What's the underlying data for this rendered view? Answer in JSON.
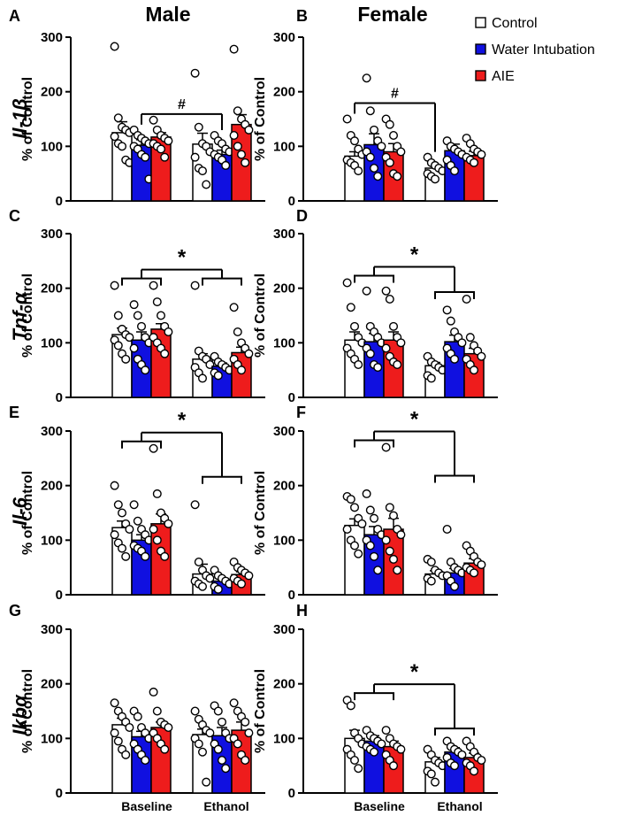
{
  "figure": {
    "col_titles": [
      "Male",
      "Female"
    ],
    "gene_labels": [
      "Il-1β",
      "Tnf-α",
      "Il-6",
      "Ikbα"
    ],
    "x_groups": [
      "Baseline",
      "Ethanol"
    ],
    "y_axis_label": "% of Control",
    "y_ticks": [
      "0",
      "100",
      "200",
      "300"
    ],
    "legend": [
      {
        "label": "Control",
        "color": "#ffffff"
      },
      {
        "label": "Water Intubation",
        "color": "#1010e0"
      },
      {
        "label": "AIE",
        "color": "#ee1c1c"
      }
    ]
  },
  "chart_data": [
    {
      "panel": "A",
      "type": "bar",
      "sex": "Male",
      "gene": "Il-1β",
      "categories": [
        "Baseline",
        "Ethanol"
      ],
      "ylabel": "% of Control",
      "ylim": [
        0,
        300
      ],
      "series": [
        {
          "name": "Control",
          "values": [
            125,
            104
          ],
          "sem": [
            20,
            20
          ],
          "points": [
            [
              283,
              152,
              135,
              130,
              125,
              118,
              105,
              100,
              75,
              70
            ],
            [
              234,
              135,
              105,
              100,
              90,
              80,
              60,
              55,
              30
            ]
          ]
        },
        {
          "name": "Water Intubation",
          "values": [
            102,
            85
          ],
          "sem": [
            10,
            8
          ],
          "points": [
            [
              130,
              120,
              115,
              110,
              105,
              100,
              95,
              85,
              80,
              40
            ],
            [
              120,
              110,
              105,
              95,
              90,
              85,
              80,
              75,
              65
            ]
          ]
        },
        {
          "name": "AIE",
          "values": [
            117,
            140
          ],
          "sem": [
            8,
            18
          ],
          "points": [
            [
              148,
              130,
              120,
              115,
              110,
              105,
              100,
              95,
              80
            ],
            [
              278,
              165,
              150,
              140,
              130,
              120,
              100,
              85,
              70
            ]
          ]
        }
      ],
      "annotations": [
        {
          "text": "#",
          "spans": [
            [
              "Baseline",
              "Water Intubation"
            ],
            [
              "Ethanol",
              "Water Intubation"
            ]
          ]
        }
      ]
    },
    {
      "panel": "B",
      "type": "bar",
      "sex": "Female",
      "gene": "Il-1β",
      "categories": [
        "Baseline",
        "Ethanol"
      ],
      "ylabel": "% of Control",
      "ylim": [
        0,
        300
      ],
      "series": [
        {
          "name": "Control",
          "values": [
            82,
            60
          ],
          "sem": [
            8,
            6
          ],
          "points": [
            [
              150,
              120,
              110,
              95,
              85,
              75,
              70,
              65,
              55
            ],
            [
              80,
              70,
              65,
              60,
              55,
              50,
              45,
              40
            ]
          ]
        },
        {
          "name": "Water Intubation",
          "values": [
            103,
            92
          ],
          "sem": [
            20,
            12
          ],
          "points": [
            [
              225,
              165,
              130,
              110,
              100,
              90,
              80,
              60,
              45
            ],
            [
              110,
              100,
              95,
              90,
              85,
              75,
              65,
              55
            ]
          ]
        },
        {
          "name": "AIE",
          "values": [
            90,
            83
          ],
          "sem": [
            15,
            8
          ],
          "points": [
            [
              150,
              140,
              120,
              100,
              90,
              80,
              70,
              50,
              45
            ],
            [
              115,
              105,
              95,
              90,
              85,
              80,
              75,
              70
            ]
          ]
        }
      ],
      "annotations": [
        {
          "text": "#",
          "spans": [
            [
              "Baseline",
              "Control"
            ],
            [
              "Ethanol",
              "Control"
            ]
          ]
        }
      ]
    },
    {
      "panel": "C",
      "type": "bar",
      "sex": "Male",
      "gene": "Tnf-α",
      "categories": [
        "Baseline",
        "Ethanol"
      ],
      "ylabel": "% of Control",
      "ylim": [
        0,
        300
      ],
      "series": [
        {
          "name": "Control",
          "values": [
            115,
            70
          ],
          "sem": [
            12,
            10
          ],
          "points": [
            [
              205,
              150,
              125,
              115,
              110,
              105,
              95,
              80,
              70
            ],
            [
              205,
              85,
              75,
              70,
              60,
              55,
              45,
              35
            ]
          ]
        },
        {
          "name": "Water Intubation",
          "values": [
            105,
            57
          ],
          "sem": [
            15,
            6
          ],
          "points": [
            [
              170,
              150,
              130,
              110,
              100,
              90,
              70,
              60,
              50
            ],
            [
              75,
              65,
              60,
              55,
              50,
              45,
              40
            ]
          ]
        },
        {
          "name": "AIE",
          "values": [
            125,
            82
          ],
          "sem": [
            10,
            10
          ],
          "points": [
            [
              205,
              175,
              150,
              130,
              120,
              110,
              100,
              90,
              80
            ],
            [
              165,
              120,
              100,
              90,
              80,
              70,
              60,
              50
            ]
          ]
        }
      ],
      "annotations": [
        {
          "text": "*",
          "spans": [
            [
              "Baseline",
              "all"
            ],
            [
              "Ethanol",
              "all"
            ]
          ]
        }
      ]
    },
    {
      "panel": "D",
      "type": "bar",
      "sex": "Female",
      "gene": "Tnf-α",
      "categories": [
        "Baseline",
        "Ethanol"
      ],
      "ylabel": "% of Control",
      "ylim": [
        0,
        300
      ],
      "series": [
        {
          "name": "Control",
          "values": [
            105,
            58
          ],
          "sem": [
            15,
            6
          ],
          "points": [
            [
              210,
              165,
              130,
              110,
              100,
              90,
              80,
              70,
              60
            ],
            [
              75,
              65,
              60,
              55,
              50,
              40,
              35
            ]
          ]
        },
        {
          "name": "Water Intubation",
          "values": [
            102,
            102
          ],
          "sem": [
            15,
            12
          ],
          "points": [
            [
              195,
              130,
              120,
              110,
              100,
              90,
              80,
              60,
              55
            ],
            [
              160,
              140,
              120,
              110,
              100,
              90,
              80,
              70
            ]
          ]
        },
        {
          "name": "AIE",
          "values": [
            105,
            80
          ],
          "sem": [
            15,
            10
          ],
          "points": [
            [
              195,
              180,
              130,
              110,
              100,
              90,
              75,
              65,
              60
            ],
            [
              180,
              110,
              95,
              85,
              75,
              70,
              60,
              50
            ]
          ]
        }
      ],
      "annotations": [
        {
          "text": "*",
          "spans": [
            [
              "Baseline",
              "all"
            ],
            [
              "Ethanol",
              "all"
            ]
          ]
        }
      ]
    },
    {
      "panel": "E",
      "type": "bar",
      "sex": "Male",
      "gene": "Il-6",
      "categories": [
        "Baseline",
        "Ethanol"
      ],
      "ylabel": "% of Control",
      "ylim": [
        0,
        300
      ],
      "series": [
        {
          "name": "Control",
          "values": [
            123,
            38
          ],
          "sem": [
            12,
            18
          ],
          "points": [
            [
              200,
              165,
              150,
              130,
              120,
              110,
              95,
              85,
              70
            ],
            [
              165,
              60,
              45,
              35,
              30,
              25,
              20,
              15
            ]
          ]
        },
        {
          "name": "Water Intubation",
          "values": [
            100,
            25
          ],
          "sem": [
            10,
            4
          ],
          "points": [
            [
              165,
              135,
              120,
              110,
              100,
              90,
              85,
              80,
              70
            ],
            [
              45,
              35,
              30,
              25,
              20,
              15,
              10
            ]
          ]
        },
        {
          "name": "AIE",
          "values": [
            130,
            37
          ],
          "sem": [
            18,
            5
          ],
          "points": [
            [
              268,
              185,
              150,
              140,
              130,
              120,
              100,
              80,
              70
            ],
            [
              60,
              50,
              45,
              40,
              35,
              30,
              25,
              20
            ]
          ]
        }
      ],
      "annotations": [
        {
          "text": "*",
          "spans": [
            [
              "Baseline",
              "all"
            ],
            [
              "Ethanol",
              "all"
            ]
          ]
        }
      ]
    },
    {
      "panel": "F",
      "type": "bar",
      "sex": "Female",
      "gene": "Il-6",
      "categories": [
        "Baseline",
        "Ethanol"
      ],
      "ylabel": "% of Control",
      "ylim": [
        0,
        300
      ],
      "series": [
        {
          "name": "Control",
          "values": [
            127,
            38
          ],
          "sem": [
            12,
            6
          ],
          "points": [
            [
              180,
              175,
              160,
              140,
              130,
              120,
              100,
              90,
              75
            ],
            [
              65,
              60,
              45,
              40,
              35,
              30,
              25
            ]
          ]
        },
        {
          "name": "Water Intubation",
          "values": [
            110,
            40
          ],
          "sem": [
            15,
            8
          ],
          "points": [
            [
              185,
              155,
              140,
              120,
              110,
              100,
              90,
              70,
              45
            ],
            [
              120,
              60,
              50,
              45,
              40,
              35,
              25,
              15
            ]
          ]
        },
        {
          "name": "AIE",
          "values": [
            120,
            58
          ],
          "sem": [
            20,
            8
          ],
          "points": [
            [
              270,
              160,
              145,
              120,
              110,
              100,
              80,
              65,
              45
            ],
            [
              90,
              80,
              70,
              60,
              55,
              50,
              45,
              40
            ]
          ]
        }
      ],
      "annotations": [
        {
          "text": "*",
          "spans": [
            [
              "Baseline",
              "all"
            ],
            [
              "Ethanol",
              "all"
            ]
          ]
        }
      ]
    },
    {
      "panel": "G",
      "type": "bar",
      "sex": "Male",
      "gene": "Ikbα",
      "categories": [
        "Baseline",
        "Ethanol"
      ],
      "ylabel": "% of Control",
      "ylim": [
        0,
        300
      ],
      "series": [
        {
          "name": "Control",
          "values": [
            125,
            107
          ],
          "sem": [
            12,
            10
          ],
          "points": [
            [
              165,
              150,
              140,
              130,
              120,
              110,
              95,
              80,
              70
            ],
            [
              150,
              135,
              125,
              115,
              110,
              100,
              90,
              75,
              20
            ]
          ]
        },
        {
          "name": "Water Intubation",
          "values": [
            103,
            105
          ],
          "sem": [
            10,
            15
          ],
          "points": [
            [
              150,
              140,
              120,
              110,
              100,
              90,
              80,
              70,
              60
            ],
            [
              160,
              150,
              130,
              110,
              100,
              90,
              80,
              60,
              45
            ]
          ]
        },
        {
          "name": "AIE",
          "values": [
            120,
            115
          ],
          "sem": [
            10,
            15
          ],
          "points": [
            [
              185,
              150,
              130,
              125,
              120,
              110,
              100,
              90,
              80
            ],
            [
              165,
              150,
              140,
              130,
              110,
              100,
              90,
              70,
              60
            ]
          ]
        }
      ],
      "annotations": []
    },
    {
      "panel": "H",
      "type": "bar",
      "sex": "Female",
      "gene": "Ikbα",
      "categories": [
        "Baseline",
        "Ethanol"
      ],
      "ylabel": "% of Control",
      "ylim": [
        0,
        300
      ],
      "series": [
        {
          "name": "Control",
          "values": [
            100,
            57
          ],
          "sem": [
            15,
            8
          ],
          "points": [
            [
              170,
              160,
              110,
              100,
              90,
              80,
              70,
              60,
              45
            ],
            [
              80,
              70,
              60,
              55,
              50,
              40,
              35,
              20
            ]
          ]
        },
        {
          "name": "Water Intubation",
          "values": [
            95,
            75
          ],
          "sem": [
            10,
            8
          ],
          "points": [
            [
              115,
              105,
              100,
              95,
              90,
              85,
              80,
              75
            ],
            [
              95,
              85,
              80,
              75,
              70,
              65,
              55,
              50
            ]
          ]
        },
        {
          "name": "AIE",
          "values": [
            85,
            65
          ],
          "sem": [
            10,
            8
          ],
          "points": [
            [
              115,
              100,
              90,
              85,
              80,
              70,
              60,
              50
            ],
            [
              95,
              85,
              75,
              65,
              60,
              55,
              50,
              40
            ]
          ]
        }
      ],
      "annotations": [
        {
          "text": "*",
          "spans": [
            [
              "Baseline",
              "all"
            ],
            [
              "Ethanol",
              "all"
            ]
          ]
        }
      ]
    }
  ]
}
